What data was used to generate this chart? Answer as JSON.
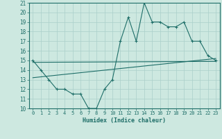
{
  "xlabel": "Humidex (Indice chaleur)",
  "ylabel": "",
  "xlim": [
    -0.5,
    23.5
  ],
  "ylim": [
    10,
    21
  ],
  "xticks": [
    0,
    1,
    2,
    3,
    4,
    5,
    6,
    7,
    8,
    9,
    10,
    11,
    12,
    13,
    14,
    15,
    16,
    17,
    18,
    19,
    20,
    21,
    22,
    23
  ],
  "yticks": [
    10,
    11,
    12,
    13,
    14,
    15,
    16,
    17,
    18,
    19,
    20,
    21
  ],
  "bg_color": "#cde8e0",
  "grid_color": "#aacfca",
  "line_color": "#1e6e68",
  "main_x": [
    0,
    1,
    2,
    3,
    4,
    5,
    6,
    7,
    8,
    9,
    10,
    11,
    12,
    13,
    14,
    15,
    16,
    17,
    18,
    19,
    20,
    21,
    22,
    23
  ],
  "main_y": [
    15,
    14,
    13,
    12,
    12,
    11.5,
    11.5,
    10,
    10,
    12,
    13,
    17,
    19.5,
    17,
    21,
    19,
    19,
    18.5,
    18.5,
    19,
    17,
    17,
    15.5,
    15
  ],
  "trend1_x": [
    0,
    23
  ],
  "trend1_y": [
    13.2,
    15.2
  ],
  "trend2_x": [
    0,
    23
  ],
  "trend2_y": [
    14.8,
    14.9
  ]
}
